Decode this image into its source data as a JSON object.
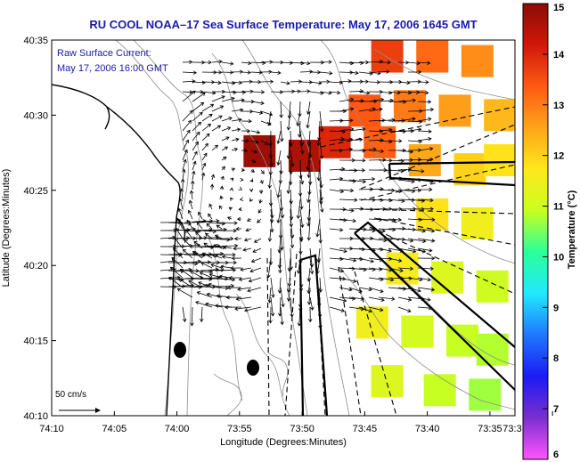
{
  "chart_data": {
    "type": "heatmap",
    "title": "RU COOL  NOAA–17  Sea Surface Temperature:  May 17, 2006 1645 GMT",
    "annotation": [
      "Raw Surface Current:",
      "May 17, 2006 16:00 GMT"
    ],
    "xlabel": "Longitude (Degrees:Minutes)",
    "ylabel": "Latitude (Degrees:Minutes)",
    "xlim": [
      -74.1667,
      -73.55
    ],
    "ylim": [
      40.1667,
      40.5833
    ],
    "x_ticks": [
      {
        "v": -74.1667,
        "label": "74:10"
      },
      {
        "v": -74.0833,
        "label": "74:05"
      },
      {
        "v": -74.0,
        "label": "74:00"
      },
      {
        "v": -73.9167,
        "label": "73:55"
      },
      {
        "v": -73.8333,
        "label": "73:50"
      },
      {
        "v": -73.75,
        "label": "73:45"
      },
      {
        "v": -73.6667,
        "label": "73:40"
      },
      {
        "v": -73.5833,
        "label": "73:35"
      },
      {
        "v": -73.5,
        "label": "73:3"
      }
    ],
    "y_ticks": [
      {
        "v": 40.1667,
        "label": "40:10"
      },
      {
        "v": 40.25,
        "label": "40:15"
      },
      {
        "v": 40.3333,
        "label": "40:20"
      },
      {
        "v": 40.4167,
        "label": "40:25"
      },
      {
        "v": 40.5,
        "label": "40:30"
      },
      {
        "v": 40.5833,
        "label": "40:35"
      }
    ],
    "colorbar": {
      "label": "Temperature (°C)",
      "range": [
        6,
        15
      ],
      "ticks": [
        "6",
        "7",
        "8",
        "9",
        "10",
        "11",
        "12",
        "13",
        "14",
        "15"
      ],
      "colors": [
        "#ff55ff",
        "#7a2fd0",
        "#1b1bf2",
        "#1e78ff",
        "#22e8ff",
        "#2aff9a",
        "#c8ff20",
        "#ffe81c",
        "#ffa41a",
        "#ff5a12",
        "#d01808",
        "#8a0c06"
      ]
    },
    "scale_arrow": {
      "label": "50 cm/s",
      "speed": 50
    },
    "sst_cells": [
      {
        "lon": -73.72,
        "lat": 40.565,
        "t": 13.7
      },
      {
        "lon": -73.66,
        "lat": 40.565,
        "t": 13.2
      },
      {
        "lon": -73.6,
        "lat": 40.56,
        "t": 12.8
      },
      {
        "lon": -73.75,
        "lat": 40.505,
        "t": 13.4
      },
      {
        "lon": -73.69,
        "lat": 40.51,
        "t": 13.0
      },
      {
        "lon": -73.63,
        "lat": 40.505,
        "t": 12.6
      },
      {
        "lon": -73.57,
        "lat": 40.5,
        "t": 12.3
      },
      {
        "lon": -73.83,
        "lat": 40.455,
        "t": 14.6
      },
      {
        "lon": -73.89,
        "lat": 40.46,
        "t": 14.8
      },
      {
        "lon": -73.79,
        "lat": 40.47,
        "t": 14.0
      },
      {
        "lon": -73.73,
        "lat": 40.47,
        "t": 13.3
      },
      {
        "lon": -73.67,
        "lat": 40.45,
        "t": 12.5
      },
      {
        "lon": -73.61,
        "lat": 40.44,
        "t": 12.0
      },
      {
        "lon": -73.57,
        "lat": 40.45,
        "t": 11.8
      },
      {
        "lon": -73.66,
        "lat": 40.39,
        "t": 11.8
      },
      {
        "lon": -73.6,
        "lat": 40.38,
        "t": 11.5
      },
      {
        "lon": -73.7,
        "lat": 40.33,
        "t": 11.6
      },
      {
        "lon": -73.64,
        "lat": 40.32,
        "t": 11.2
      },
      {
        "lon": -73.58,
        "lat": 40.31,
        "t": 11.0
      },
      {
        "lon": -73.74,
        "lat": 40.27,
        "t": 11.5
      },
      {
        "lon": -73.68,
        "lat": 40.26,
        "t": 11.1
      },
      {
        "lon": -73.62,
        "lat": 40.25,
        "t": 10.9
      },
      {
        "lon": -73.58,
        "lat": 40.24,
        "t": 10.8
      },
      {
        "lon": -73.72,
        "lat": 40.205,
        "t": 11.2
      },
      {
        "lon": -73.65,
        "lat": 40.195,
        "t": 10.9
      },
      {
        "lon": -73.59,
        "lat": 40.19,
        "t": 10.7
      }
    ]
  }
}
